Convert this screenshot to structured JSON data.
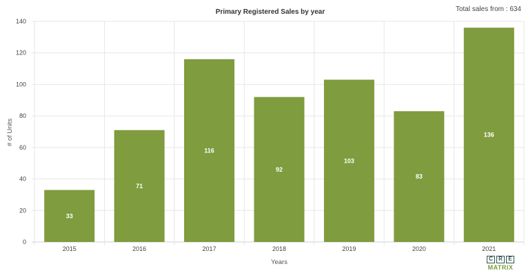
{
  "header": {
    "total_sales": "Total sales from : 634"
  },
  "chart_data": {
    "type": "bar",
    "title": "Primary Registered Sales by year",
    "xlabel": "Years",
    "ylabel": "# of Units",
    "categories": [
      "2015",
      "2016",
      "2017",
      "2018",
      "2019",
      "2020",
      "2021"
    ],
    "values": [
      33,
      71,
      116,
      92,
      103,
      83,
      136
    ],
    "ylim": [
      0,
      140
    ],
    "yticks": [
      0,
      20,
      40,
      60,
      80,
      100,
      120,
      140
    ],
    "bar_color": "#7f9c3e",
    "grid": true,
    "legend": "none"
  },
  "logo": {
    "top_letters": [
      "C",
      "R",
      "E"
    ],
    "bottom_text": "MATRIX"
  }
}
